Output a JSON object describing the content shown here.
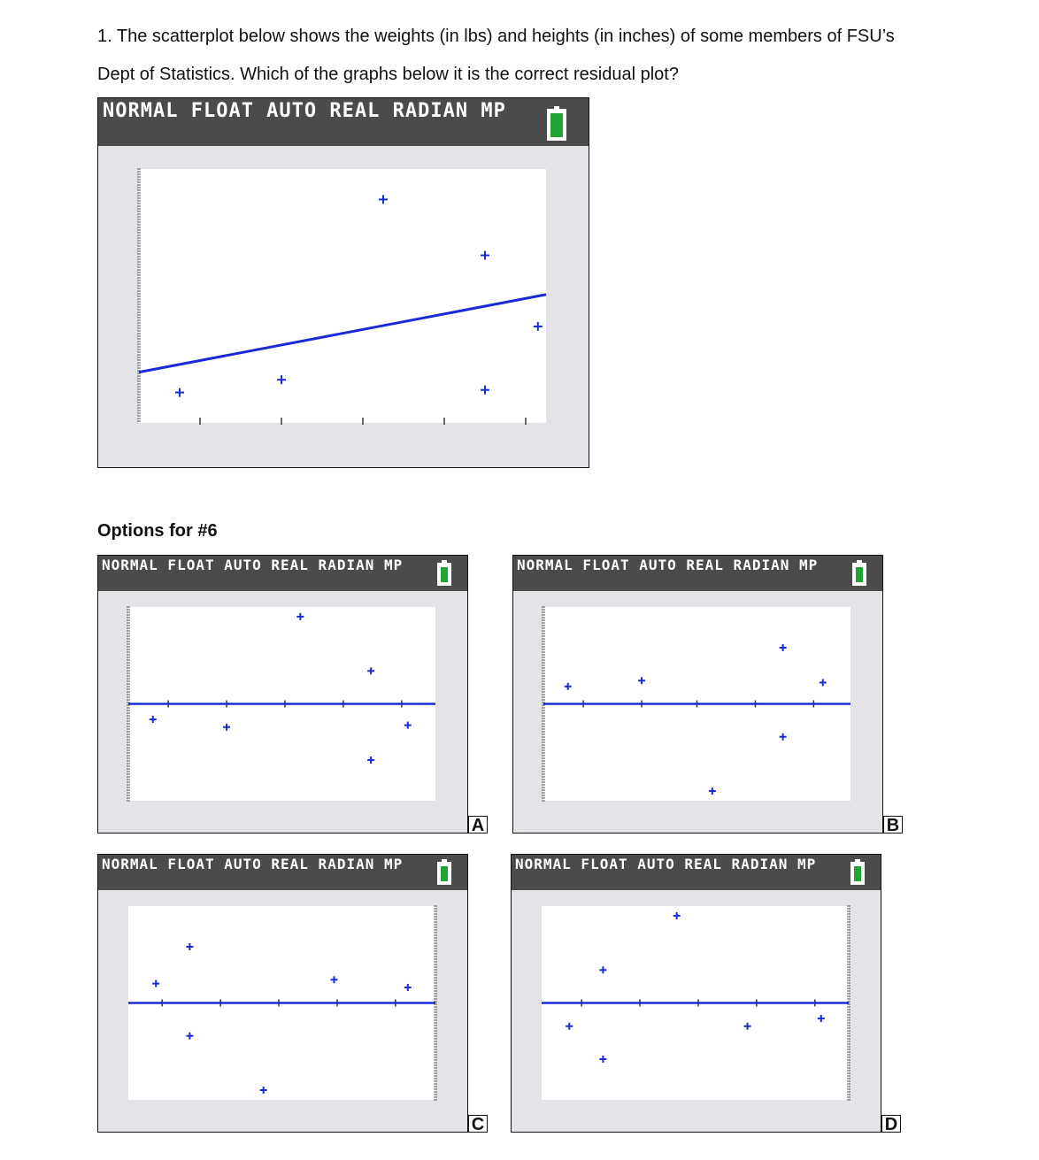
{
  "question": {
    "line1": "1. The scatterplot below shows the weights (in lbs) and heights (in inches) of some members of FSU’s",
    "line2": "Dept of Statistics.  Which of the graphs below it is the correct residual plot?"
  },
  "options_heading": "Options for #6",
  "status_bar_text": "NORMAL FLOAT AUTO REAL RADIAN MP",
  "colors": {
    "points": "#1a2bd6",
    "line": "#1a2bd6",
    "battery": "#22a435",
    "status_bar": "#4b4b4b",
    "frame": "#e4e3e8"
  },
  "icons": {
    "battery": "battery-icon",
    "point": "plus-marker"
  },
  "chart_data": [
    {
      "type": "scatter",
      "id": "main",
      "xlim": [
        0,
        10
      ],
      "ylim": [
        0,
        10
      ],
      "points": [
        [
          1,
          1.2
        ],
        [
          3.5,
          1.7
        ],
        [
          6,
          8.8
        ],
        [
          8.5,
          6.6
        ],
        [
          8.5,
          1.3
        ],
        [
          9.8,
          3.8
        ]
      ],
      "regression_line": [
        [
          0,
          2.0
        ],
        [
          10.8,
          5.3
        ]
      ],
      "x_ticks": [
        1.5,
        3.5,
        5.5,
        7.5,
        9.5
      ],
      "y_axis_left": true,
      "y_axis_right": false
    },
    {
      "type": "scatter",
      "id": "A",
      "label": "A",
      "xlim": [
        0,
        10
      ],
      "ylim": [
        -5,
        5
      ],
      "points": [
        [
          0.8,
          -0.8
        ],
        [
          3.2,
          -1.2
        ],
        [
          5.6,
          4.5
        ],
        [
          7.9,
          1.7
        ],
        [
          7.9,
          -2.9
        ],
        [
          9.1,
          -1.1
        ]
      ],
      "zero_line": 0,
      "x_ticks": [
        1.3,
        3.2,
        5.1,
        7.0,
        8.9
      ],
      "y_axis_left": true,
      "y_axis_right": false
    },
    {
      "type": "scatter",
      "id": "B",
      "label": "B",
      "xlim": [
        0,
        10
      ],
      "ylim": [
        -5,
        5
      ],
      "points": [
        [
          0.8,
          0.9
        ],
        [
          3.2,
          1.2
        ],
        [
          5.5,
          -4.5
        ],
        [
          7.8,
          2.9
        ],
        [
          7.8,
          -1.7
        ],
        [
          9.1,
          1.1
        ]
      ],
      "zero_line": 0,
      "x_ticks": [
        1.3,
        3.2,
        5.0,
        6.9,
        8.8
      ],
      "y_axis_left": true,
      "y_axis_right": false
    },
    {
      "type": "scatter",
      "id": "C",
      "label": "C",
      "xlim": [
        0,
        10
      ],
      "ylim": [
        -5,
        5
      ],
      "points": [
        [
          0.9,
          1.0
        ],
        [
          2.0,
          2.9
        ],
        [
          2.0,
          -1.7
        ],
        [
          4.4,
          -4.5
        ],
        [
          6.7,
          1.2
        ],
        [
          9.1,
          0.8
        ]
      ],
      "zero_line": 0,
      "x_ticks": [
        1.1,
        3.0,
        4.9,
        6.8,
        8.7
      ],
      "y_axis_left": false,
      "y_axis_right": true
    },
    {
      "type": "scatter",
      "id": "D",
      "label": "D",
      "xlim": [
        0,
        10
      ],
      "ylim": [
        -5,
        5
      ],
      "points": [
        [
          0.9,
          -1.2
        ],
        [
          2.0,
          1.7
        ],
        [
          2.0,
          -2.9
        ],
        [
          4.4,
          4.5
        ],
        [
          6.7,
          -1.2
        ],
        [
          9.1,
          -0.8
        ]
      ],
      "zero_line": 0,
      "x_ticks": [
        1.3,
        3.2,
        5.1,
        7.0,
        8.9
      ],
      "y_axis_left": false,
      "y_axis_right": true
    }
  ]
}
